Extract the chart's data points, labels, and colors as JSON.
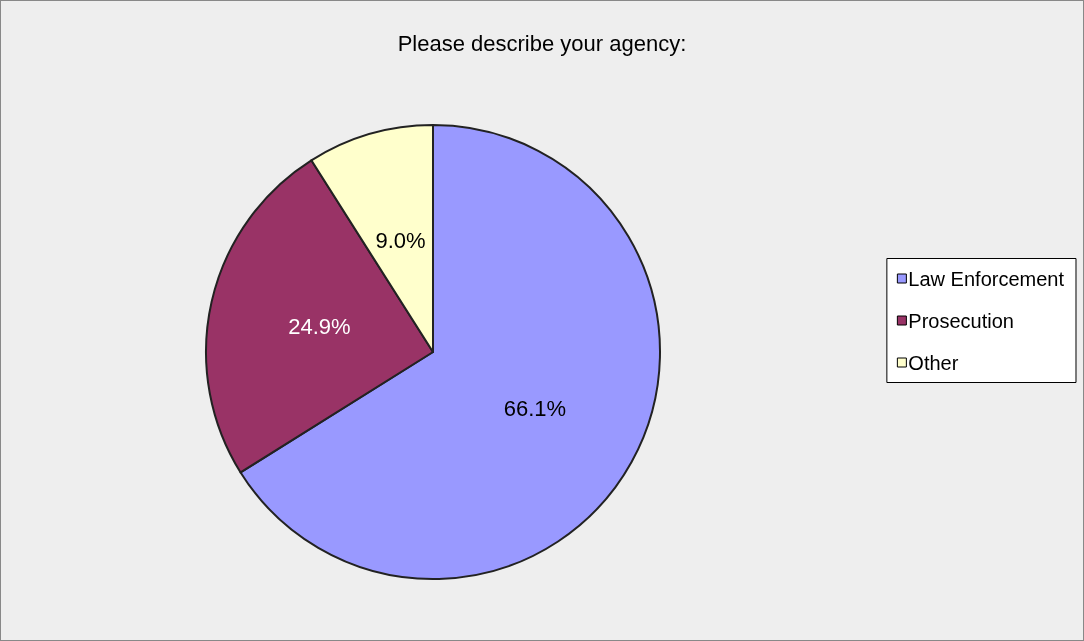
{
  "chart_data": {
    "type": "pie",
    "title": "Please describe your agency:",
    "categories": [
      "Law Enforcement",
      "Prosecution",
      "Other"
    ],
    "values": [
      66.1,
      24.9,
      9.0
    ],
    "colors": [
      "#9999ff",
      "#993366",
      "#ffffcc"
    ],
    "value_labels": [
      "66.1%",
      "24.9%",
      "9.0%"
    ],
    "legend": "right"
  }
}
